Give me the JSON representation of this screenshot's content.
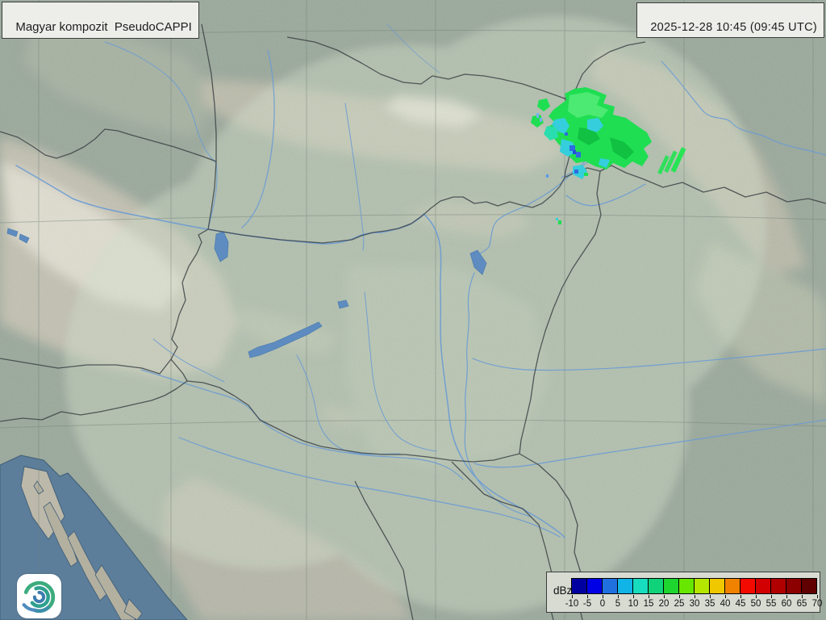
{
  "header": {
    "product_label": "Magyar kompozit  PseudoCAPPI",
    "timestamp": "2025-12-28 10:45 (09:45 UTC)"
  },
  "legend": {
    "unit_label": "dBz",
    "tick_labels": [
      "-10",
      "-5",
      "0",
      "5",
      "10",
      "15",
      "20",
      "25",
      "30",
      "35",
      "40",
      "45",
      "50",
      "55",
      "60",
      "65",
      "70"
    ],
    "colors": [
      "#0000A0",
      "#0000E6",
      "#2070E0",
      "#10B4E6",
      "#18DCBE",
      "#10D278",
      "#1ED42E",
      "#66E600",
      "#B4E600",
      "#F0C800",
      "#F08200",
      "#F50A00",
      "#D20000",
      "#B00000",
      "#8C0000",
      "#600000"
    ]
  },
  "logo": {
    "icon_name": "hungaromet-spiral-logo"
  },
  "map": {
    "colors": {
      "sea": "#5C7E9B",
      "plain_inside_range": "#B7C6B4",
      "land_outside_range": "#9DAB9E",
      "mountain": "#C6C2B2",
      "high_mountain": "#ECE8DD",
      "river": "#6A9BD4",
      "lake": "#5E8CC0",
      "border": "#3D4347",
      "grid": "#70807A",
      "radar_range_tint": "#D3E0CB"
    },
    "echo_colors": {
      "rain_green": "#1FDE52",
      "drizzle_cyan": "#35CEDC",
      "turquoise": "#2ADDAE",
      "weak_blue": "#2E6CE0"
    }
  }
}
